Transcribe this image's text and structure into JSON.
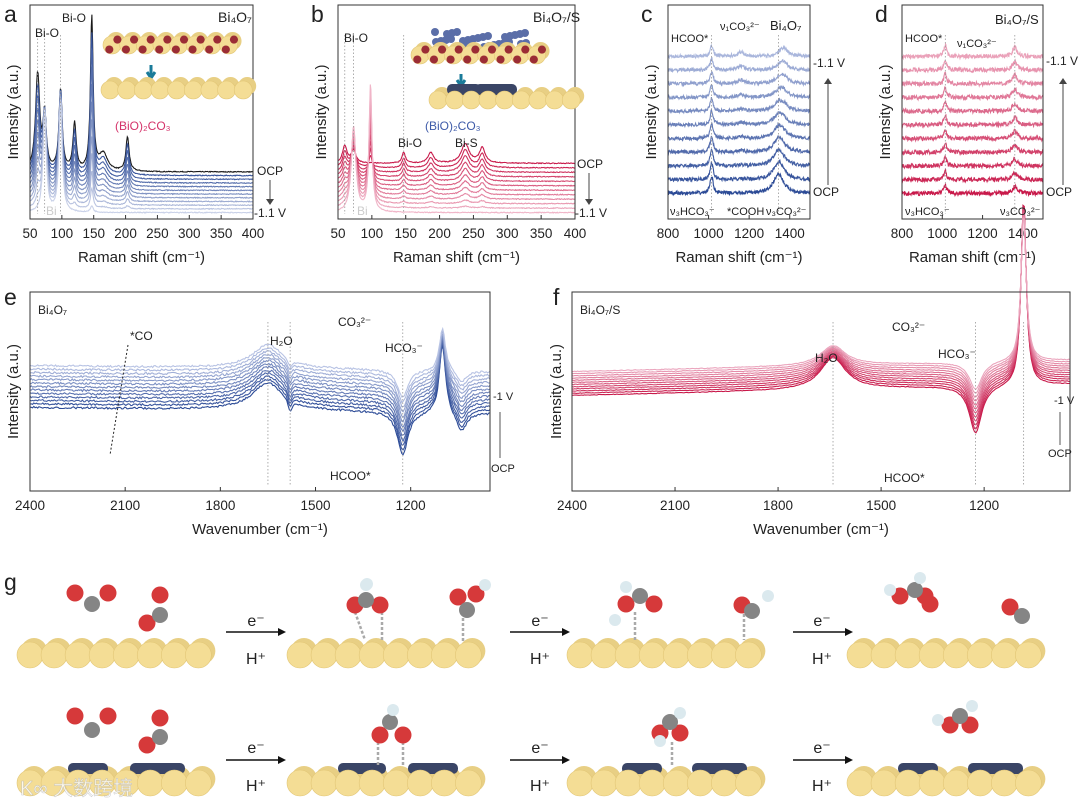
{
  "figure": {
    "panel_letters": [
      "a",
      "b",
      "c",
      "d",
      "e",
      "f",
      "g"
    ],
    "reaction_labels": {
      "electron": "e⁻",
      "proton": "H⁺"
    },
    "watermark": "大数跨境"
  },
  "chart_data": [
    {
      "id": "a",
      "type": "line",
      "title": "Bi₄O₇",
      "xlabel": "Raman shift (cm⁻¹)",
      "ylabel": "Intensity (a.u.)",
      "xlim": [
        50,
        400
      ],
      "ylim": [
        0,
        100
      ],
      "xticks": [
        50,
        100,
        150,
        200,
        250,
        300,
        350,
        400
      ],
      "annotations": [
        "Bi-O",
        "Bi-O",
        "(BiO)₂CO₃",
        "Bi",
        "OCP",
        "-1.1 V"
      ],
      "traces": 12,
      "first_color": "#1a1a1a",
      "colors": [
        "#2b4a96",
        "#c9d1e8"
      ],
      "baselines": [
        22,
        3
      ],
      "peaks_first": [
        [
          62,
          45,
          4
        ],
        [
          73,
          25,
          3
        ],
        [
          98,
          38,
          3
        ],
        [
          120,
          22,
          3
        ],
        [
          147,
          72,
          2.5
        ],
        [
          165,
          8,
          8
        ],
        [
          203,
          16,
          3
        ]
      ],
      "peaks_last": [
        [
          73,
          48,
          3
        ],
        [
          98,
          52,
          2.5
        ],
        [
          147,
          3,
          2
        ]
      ],
      "noise": 0.2
    },
    {
      "id": "b",
      "type": "line",
      "title": "Bi₄O₇/S",
      "xlabel": "Raman shift (cm⁻¹)",
      "ylabel": "Intensity (a.u.)",
      "xlim": [
        50,
        400
      ],
      "ylim": [
        0,
        100
      ],
      "xticks": [
        50,
        100,
        150,
        200,
        250,
        300,
        350,
        400
      ],
      "annotations": [
        "Bi-O",
        "(BiO)₂CO₃",
        "Bi-O",
        "Bi-S",
        "Bi",
        "OCP",
        "-1.1 V"
      ],
      "traces": 12,
      "colors": [
        "#c8194a",
        "#f0b5c8"
      ],
      "baselines": [
        26,
        3
      ],
      "peaks_first": [
        [
          60,
          8,
          4
        ],
        [
          73,
          6,
          4
        ],
        [
          147,
          5,
          3
        ],
        [
          187,
          5,
          5
        ],
        [
          238,
          9,
          7
        ],
        [
          263,
          7,
          5
        ]
      ],
      "peaks_last": [
        [
          73,
          40,
          3
        ],
        [
          98,
          60,
          2.5
        ]
      ],
      "noise": 0.2
    },
    {
      "id": "c",
      "type": "line",
      "title": "Bi₄O₇",
      "xlabel": "Raman shift (cm⁻¹)",
      "ylabel": "Intensity (a.u.)",
      "xlim": [
        800,
        1500
      ],
      "ylim": [
        0,
        100
      ],
      "xticks": [
        800,
        1000,
        1200,
        1400
      ],
      "annotations": [
        "HCOO*",
        "ν₁CO₃²⁻",
        "*COOH",
        "ν₃HCO₃⁻",
        "ν₃CO₃²⁻",
        "-1.1 V",
        "OCP"
      ],
      "traces": 11,
      "colors": [
        "#2b4a96",
        "#a9b6dc"
      ],
      "order": "bottom-to-top",
      "baselines": [
        12,
        76
      ],
      "peaks_first": [
        [
          1015,
          8,
          9
        ],
        [
          1345,
          9,
          30
        ]
      ],
      "peaks_last": [
        [
          1015,
          5,
          9
        ],
        [
          1370,
          4,
          25
        ],
        [
          1160,
          2,
          20
        ]
      ],
      "noise": 0.8
    },
    {
      "id": "d",
      "type": "line",
      "title": "Bi₄O₇/S",
      "xlabel": "Raman shift (cm⁻¹)",
      "ylabel": "Intensity (a.u.)",
      "xlim": [
        800,
        1500
      ],
      "ylim": [
        0,
        100
      ],
      "xticks": [
        800,
        1000,
        1200,
        1400
      ],
      "annotations": [
        "HCOO*",
        "ν₁CO₃²⁻",
        "ν₃HCO₃⁻",
        "ν₃CO₃²⁻",
        "-1.1 V",
        "OCP"
      ],
      "traces": 11,
      "colors": [
        "#c8194a",
        "#eaa1b9"
      ],
      "order": "bottom-to-top",
      "baselines": [
        12,
        76
      ],
      "peaks_first": [
        [
          1015,
          4,
          8
        ],
        [
          1360,
          3,
          15
        ]
      ],
      "peaks_last": [
        [
          1015,
          5,
          8
        ],
        [
          1360,
          4,
          15
        ]
      ],
      "noise": 1.0
    },
    {
      "id": "e",
      "type": "line",
      "title": "Bi₄O₇",
      "xlabel": "Wavenumber (cm⁻¹)",
      "ylabel": "Intensity (a.u.)",
      "xlim": [
        2400,
        950
      ],
      "ylim": [
        0,
        100
      ],
      "xticks": [
        2400,
        2100,
        1800,
        1500,
        1200
      ],
      "annotations": [
        "*CO",
        "H₂O",
        "CO₃²⁻",
        "HCO₃⁻",
        "HCOO*",
        "-1 V",
        "OCP"
      ],
      "traces": 13,
      "colors": [
        "#2b4a96",
        "#b8c3e4"
      ],
      "order": "bottom-to-top",
      "baselines": [
        42,
        63
      ],
      "slope": 0.002,
      "peaks_first": [
        [
          1650,
          14,
          60
        ],
        [
          1580,
          -6,
          8
        ],
        [
          1225,
          -22,
          20
        ],
        [
          1100,
          35,
          12
        ],
        [
          1040,
          -10,
          20
        ]
      ],
      "peaks_last": [
        [
          1650,
          12,
          60
        ],
        [
          1580,
          -4,
          8
        ],
        [
          1225,
          -14,
          20
        ],
        [
          1100,
          22,
          12
        ],
        [
          1040,
          -6,
          20
        ]
      ],
      "noise": 0.5
    },
    {
      "id": "f",
      "type": "line",
      "title": "Bi₄O₇/S",
      "xlabel": "Wavenumber (cm⁻¹)",
      "ylabel": "Intensity (a.u.)",
      "xlim": [
        2400,
        950
      ],
      "ylim": [
        0,
        100
      ],
      "xticks": [
        2400,
        2100,
        1800,
        1500,
        1200
      ],
      "annotations": [
        "H₂O",
        "CO₃²⁻",
        "HCO₃⁻",
        "HCOO*",
        "-1 V",
        "OCP"
      ],
      "traces": 12,
      "colors": [
        "#c8194a",
        "#eba6be"
      ],
      "order": "bottom-to-top",
      "baselines": [
        48,
        60
      ],
      "slope": -0.004,
      "peaks_first": [
        [
          1640,
          16,
          45
        ],
        [
          1225,
          -24,
          22
        ],
        [
          1085,
          95,
          9
        ]
      ],
      "peaks_last": [
        [
          1640,
          10,
          45
        ],
        [
          1225,
          -14,
          22
        ],
        [
          1085,
          75,
          9
        ]
      ],
      "noise": 0.15
    }
  ]
}
